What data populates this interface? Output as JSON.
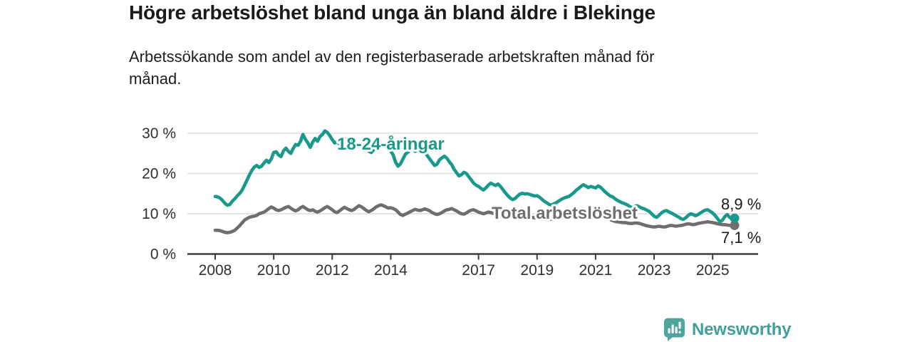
{
  "header": {
    "title": "Högre arbetslöshet bland unga än bland äldre i Blekinge",
    "subtitle": "Arbetssökande som andel av den registerbaserade arbetskraften månad för månad."
  },
  "footer": {
    "brand": "Newsworthy",
    "logo_icon": "newsworthy-bar-chart-bubble-icon"
  },
  "colors": {
    "youth_series": "#18998b",
    "total_series": "#6e6e6e",
    "gridline": "#dcdcdc",
    "axis": "#3d3d3d",
    "text": "#1a1a1a",
    "brand": "#41a098"
  },
  "chart_data": {
    "type": "line",
    "title": "Högre arbetslöshet bland unga än bland äldre i Blekinge",
    "subtitle": "Arbetssökande som andel av den registerbaserade arbetskraften månad för månad.",
    "grid": "horizontal",
    "legend_position": "inline-labels",
    "x_axis": {
      "range_years": [
        2008,
        2025.83
      ],
      "ticks": [
        {
          "label": "2008",
          "year": 2008
        },
        {
          "label": "2010",
          "year": 2010
        },
        {
          "label": "2012",
          "year": 2012
        },
        {
          "label": "2014",
          "year": 2014
        },
        {
          "label": "2017",
          "year": 2017
        },
        {
          "label": "2019",
          "year": 2019
        },
        {
          "label": "2021",
          "year": 2021
        },
        {
          "label": "2023",
          "year": 2023
        },
        {
          "label": "2025",
          "year": 2025
        }
      ]
    },
    "y_axis": {
      "unit": "%",
      "range": [
        0,
        32
      ],
      "ticks": [
        {
          "label": "30 %",
          "value": 30
        },
        {
          "label": "20 %",
          "value": 20
        },
        {
          "label": "10 %",
          "value": 10
        },
        {
          "label": "0 %",
          "value": 0
        }
      ]
    },
    "x_start_year": 2008.0,
    "x_step_months": 1,
    "series": [
      {
        "name": "18-24-åringar",
        "color": "#18998b",
        "end_label": "8,9 %",
        "end_value": 8.9,
        "values": [
          14.3,
          14.2,
          13.9,
          13.3,
          12.6,
          12.1,
          12.3,
          13.1,
          13.7,
          14.4,
          15.0,
          15.8,
          17.0,
          18.3,
          19.6,
          20.7,
          21.6,
          22.0,
          21.5,
          21.8,
          22.6,
          23.3,
          22.7,
          23.6,
          25.2,
          25.4,
          24.6,
          24.2,
          25.6,
          26.3,
          25.5,
          25.0,
          26.2,
          27.2,
          27.0,
          28.0,
          29.7,
          28.5,
          27.6,
          26.5,
          27.8,
          28.7,
          28.0,
          29.2,
          29.7,
          30.6,
          30.2,
          29.4,
          28.4,
          27.6,
          27.9,
          27.3,
          27.6,
          28.0,
          28.6,
          28.9,
          28.3,
          27.8,
          27.4,
          27.0,
          27.3,
          26.8,
          26.2,
          25.6,
          25.2,
          25.9,
          26.6,
          27.0,
          27.4,
          27.2,
          26.8,
          26.3,
          25.6,
          24.6,
          22.8,
          21.8,
          22.4,
          23.6,
          24.8,
          25.3,
          25.9,
          26.1,
          25.5,
          25.8,
          25.7,
          25.5,
          25.2,
          24.4,
          23.6,
          22.8,
          22.0,
          22.3,
          23.4,
          23.9,
          24.3,
          23.8,
          22.9,
          22.2,
          21.0,
          20.2,
          19.4,
          19.7,
          20.3,
          20.0,
          19.2,
          18.4,
          17.6,
          17.1,
          16.8,
          16.3,
          15.9,
          16.4,
          17.1,
          17.6,
          17.3,
          17.0,
          17.4,
          16.8,
          16.0,
          15.2,
          14.5,
          13.9,
          13.5,
          13.8,
          14.4,
          14.9,
          15.1,
          14.9,
          15.0,
          14.8,
          14.6,
          14.4,
          14.5,
          14.1,
          13.6,
          13.1,
          12.7,
          12.3,
          12.2,
          12.5,
          12.8,
          13.2,
          13.6,
          13.9,
          14.1,
          14.3,
          14.7,
          15.2,
          15.8,
          16.3,
          16.8,
          17.2,
          16.9,
          16.5,
          16.8,
          16.6,
          16.4,
          16.9,
          16.6,
          16.0,
          15.4,
          14.9,
          14.4,
          14.2,
          13.7,
          13.3,
          13.0,
          12.7,
          12.5,
          12.2,
          11.8,
          11.5,
          11.8,
          12.0,
          11.7,
          11.4,
          11.2,
          10.9,
          10.6,
          10.0,
          9.4,
          9.1,
          9.6,
          10.2,
          10.6,
          10.8,
          10.5,
          10.2,
          9.9,
          9.5,
          9.2,
          8.8,
          8.6,
          9.0,
          9.6,
          10.0,
          9.8,
          9.5,
          9.8,
          10.2,
          10.6,
          10.9,
          11.0,
          10.6,
          10.2,
          9.6,
          8.8,
          8.0,
          8.4,
          9.3,
          9.8,
          9.1,
          8.7,
          8.9
        ]
      },
      {
        "name": "Total arbetslöshet",
        "color": "#6e6e6e",
        "end_label": "7,1 %",
        "end_value": 7.1,
        "values": [
          5.9,
          5.9,
          5.8,
          5.6,
          5.4,
          5.3,
          5.4,
          5.6,
          5.9,
          6.4,
          7.0,
          7.7,
          8.4,
          8.8,
          9.1,
          9.3,
          9.4,
          9.6,
          10.0,
          10.2,
          10.4,
          10.8,
          11.3,
          11.7,
          11.4,
          11.0,
          10.8,
          11.0,
          11.3,
          11.6,
          11.8,
          11.4,
          11.0,
          10.7,
          11.0,
          11.5,
          11.8,
          11.4,
          11.0,
          10.8,
          11.0,
          10.6,
          10.4,
          10.7,
          11.1,
          11.5,
          11.8,
          11.4,
          11.0,
          10.5,
          10.3,
          10.7,
          11.2,
          11.6,
          11.3,
          11.0,
          10.8,
          11.1,
          11.6,
          12.0,
          11.7,
          11.3,
          10.8,
          10.5,
          10.8,
          11.2,
          11.7,
          12.0,
          12.2,
          12.0,
          11.7,
          11.4,
          11.5,
          11.3,
          11.0,
          10.4,
          9.8,
          9.6,
          9.9,
          10.2,
          10.5,
          10.8,
          11.1,
          10.9,
          10.8,
          11.0,
          11.2,
          11.0,
          10.7,
          10.3,
          10.0,
          9.8,
          10.0,
          10.3,
          10.7,
          11.0,
          11.1,
          11.3,
          11.0,
          10.7,
          10.3,
          10.0,
          9.9,
          10.2,
          10.6,
          10.9,
          11.0,
          10.7,
          10.4,
          10.2,
          10.0,
          10.2,
          10.4,
          10.3,
          10.1,
          9.9,
          10.0,
          10.1,
          9.9,
          9.7,
          9.5,
          9.3,
          9.2,
          9.3,
          9.4,
          9.3,
          9.2,
          9.1,
          9.2,
          9.2,
          9.1,
          9.0,
          8.9,
          8.8,
          8.7,
          8.7,
          8.6,
          8.6,
          8.7,
          8.8,
          8.8,
          8.9,
          9.0,
          9.1,
          9.2,
          9.4,
          9.8,
          10.3,
          10.6,
          10.8,
          10.7,
          10.6,
          10.5,
          10.4,
          10.3,
          10.1,
          10.0,
          9.8,
          9.6,
          9.4,
          9.1,
          8.9,
          8.6,
          8.3,
          8.1,
          8.0,
          7.9,
          7.8,
          7.8,
          7.7,
          7.6,
          7.6,
          7.7,
          7.7,
          7.6,
          7.4,
          7.2,
          7.0,
          6.9,
          6.8,
          6.7,
          6.8,
          6.9,
          6.8,
          6.7,
          6.8,
          7.0,
          7.1,
          7.0,
          6.9,
          7.0,
          7.1,
          7.2,
          7.4,
          7.5,
          7.4,
          7.3,
          7.4,
          7.6,
          7.7,
          7.8,
          7.9,
          8.0,
          7.9,
          7.8,
          7.7,
          7.5,
          7.4,
          7.3,
          7.3,
          7.2,
          7.1,
          7.0,
          7.1
        ]
      }
    ]
  }
}
